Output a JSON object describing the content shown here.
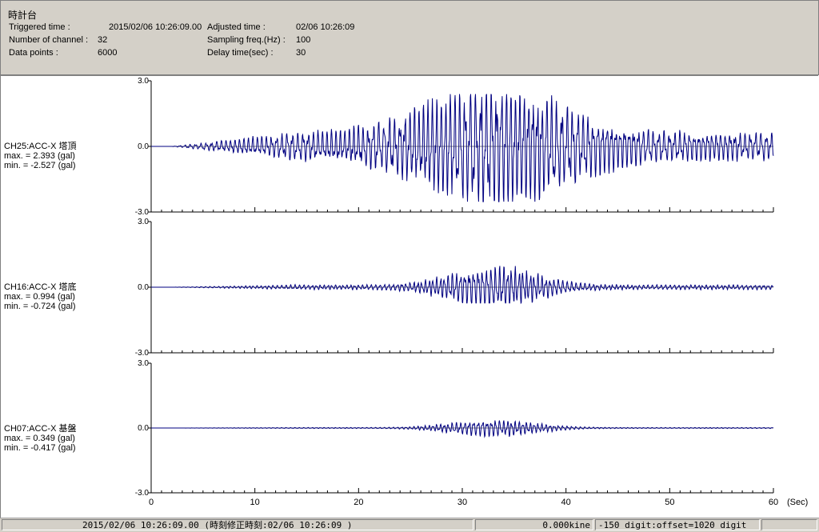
{
  "header": {
    "title": "時計台",
    "triggered_label": "Triggered time :",
    "triggered_value": "2015/02/06 10:26:09.00",
    "adjusted_label": "Adjusted time :",
    "adjusted_value": "02/06 10:26:09",
    "channels_label": "Number of channel :",
    "channels_value": "32",
    "sampling_label": "Sampling freq.(Hz) :",
    "sampling_value": "100",
    "datapoints_label": "Data points :",
    "datapoints_value": "6000",
    "delay_label": "Delay time(sec) :",
    "delay_value": "30"
  },
  "channels": [
    {
      "name": "CH25:ACC-X 塔頂",
      "max": "max. = 2.393 (gal)",
      "min": "min. = -2.527 (gal)",
      "amp_max": 2.393,
      "amp_min": -2.527
    },
    {
      "name": "CH16:ACC-X 塔底",
      "max": "max. = 0.994 (gal)",
      "min": "min. = -0.724 (gal)",
      "amp_max": 0.994,
      "amp_min": -0.724
    },
    {
      "name": "CH07:ACC-X 基盤",
      "max": "max. = 0.349 (gal)",
      "min": "min. = -0.417 (gal)",
      "amp_max": 0.349,
      "amp_min": -0.417
    }
  ],
  "y_ticks": [
    "3.0",
    "0.0",
    "-3.0"
  ],
  "y_range": [
    -3.0,
    3.0
  ],
  "x_ticks": [
    "0",
    "10",
    "20",
    "30",
    "40",
    "50",
    "60"
  ],
  "x_range": [
    0,
    60
  ],
  "x_unit": "(Sec)",
  "wave_color": "#000080",
  "status": {
    "time": "2015/02/06 10:26:09.00  (時刻修正時刻:02/06 10:26:09 )",
    "velocity": "0.000kine",
    "digit": "-150 digit:offset=1020 digit"
  }
}
